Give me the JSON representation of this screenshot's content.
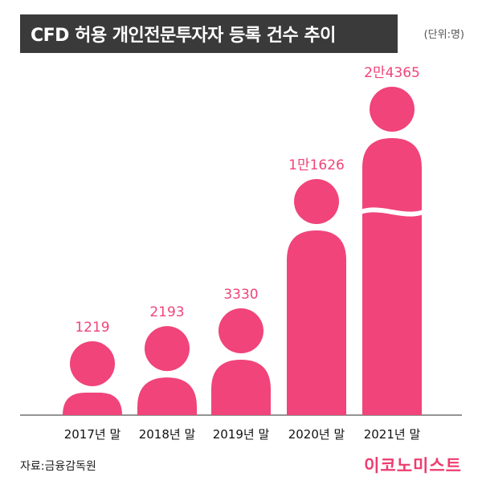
{
  "title": "CFD 허용 개인전문투자자 등록 건수 추이",
  "unit": "(단위:명)",
  "source": "자료:금융감독원",
  "brand": "이코노미스트",
  "colors": {
    "accent": "#f0447a",
    "title_bg": "#3a3a3a"
  },
  "chart_data": {
    "type": "bar",
    "categories": [
      "2017년 말",
      "2018년 말",
      "2019년 말",
      "2020년 말",
      "2021년 말"
    ],
    "values": [
      1219,
      2193,
      3330,
      11626,
      24365
    ],
    "value_labels": [
      "1219",
      "2193",
      "3330",
      "1만1626",
      "2만4365"
    ],
    "axis_break": {
      "category": "2021년 말"
    },
    "title": "CFD 허용 개인전문투자자 등록 건수 추이",
    "ylabel": "",
    "legend": "none",
    "grid": false
  }
}
